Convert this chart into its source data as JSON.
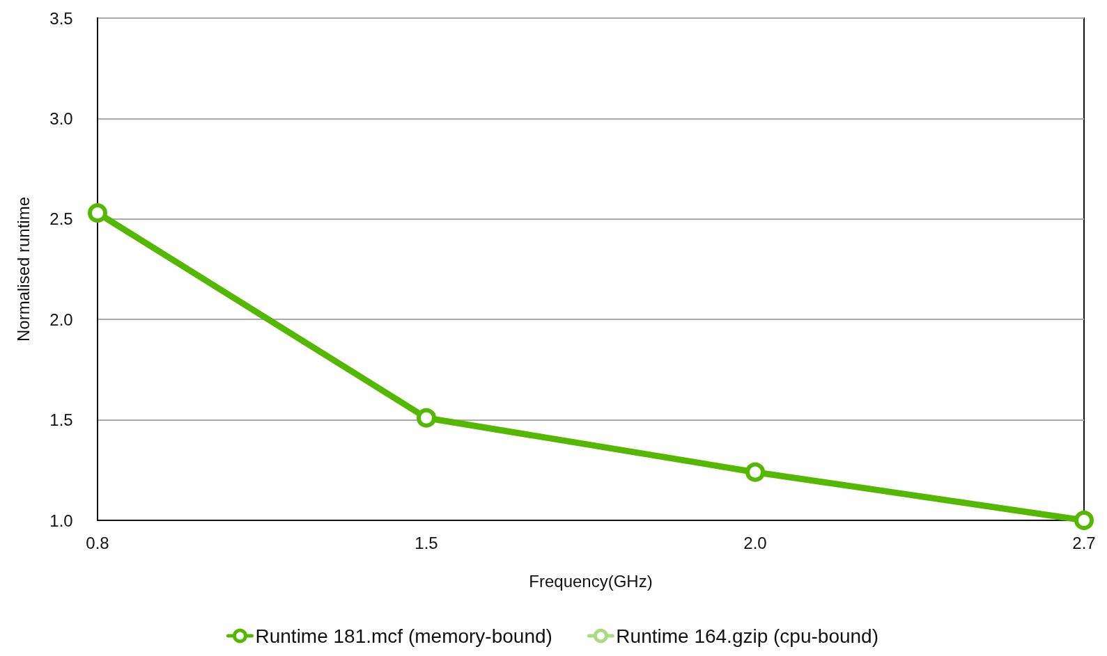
{
  "chart_data": {
    "type": "line",
    "xlabel": "Frequency(GHz)",
    "ylabel": "Normalised runtime",
    "categories": [
      "0.8",
      "1.5",
      "2.0",
      "2.7"
    ],
    "series": [
      {
        "name": "Runtime 181.mcf (memory-bound)",
        "color": "#55b800",
        "values": [
          2.53,
          1.51,
          1.24,
          1.0
        ]
      },
      {
        "name": "Runtime 164.gzip (cpu-bound)",
        "color": "#a8dc80",
        "values": [
          null,
          null,
          null,
          null
        ]
      }
    ],
    "ylim": [
      1.0,
      3.5
    ],
    "yticks": [
      {
        "value": 1.0,
        "label": "1.0"
      },
      {
        "value": 1.5,
        "label": "1.5"
      },
      {
        "value": 2.0,
        "label": "2.0"
      },
      {
        "value": 2.5,
        "label": "2.5"
      },
      {
        "value": 3.0,
        "label": "3.0"
      },
      {
        "value": 3.5,
        "label": "3.5"
      }
    ],
    "grid": "y",
    "legend": "bottom",
    "marker": "circle",
    "line_style": "solid"
  }
}
